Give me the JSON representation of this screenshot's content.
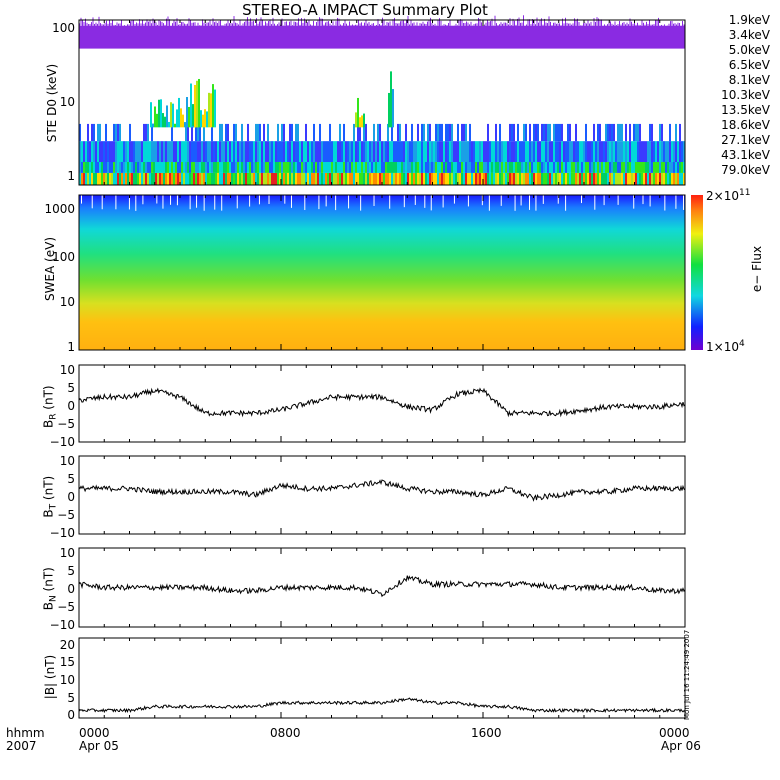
{
  "title": "STEREO-A IMPACT Summary Plot",
  "stamp": "Mon Jul 16 11:24:49 2007",
  "panels": {
    "ste": {
      "ylabel": "STE D0 (keV)",
      "ticks": [
        "100",
        "10",
        "1"
      ]
    },
    "swea": {
      "ylabel": "SWEA (eV)",
      "ticks": [
        "1000",
        "100",
        "10",
        "1"
      ],
      "colorbar_label": "e− Flux",
      "cb_max": "2×10",
      "cb_max_exp": "11",
      "cb_min": "1×10",
      "cb_min_exp": "4"
    },
    "br": {
      "ylabel_main": "B",
      "ylabel_sub": "R",
      "ylabel_unit": " (nT)",
      "ticks": [
        "10",
        "5",
        "0",
        "−5",
        "−10"
      ]
    },
    "bt": {
      "ylabel_main": "B",
      "ylabel_sub": "T",
      "ylabel_unit": " (nT)",
      "ticks": [
        "10",
        "5",
        "0",
        "−5",
        "−10"
      ]
    },
    "bn": {
      "ylabel_main": "B",
      "ylabel_sub": "N",
      "ylabel_unit": " (nT)",
      "ticks": [
        "10",
        "5",
        "0",
        "−5",
        "−10"
      ]
    },
    "bmag": {
      "ylabel": "|B| (nT)",
      "ticks": [
        "20",
        "15",
        "10",
        "5",
        "0"
      ]
    }
  },
  "legend": [
    {
      "label": "1.9keV",
      "color": "#8a2be2"
    },
    {
      "label": "3.4keV",
      "color": "#3a3aff"
    },
    {
      "label": "5.0keV",
      "color": "#1a5cff"
    },
    {
      "label": "6.5keV",
      "color": "#1aa0e6"
    },
    {
      "label": "8.1keV",
      "color": "#00d8d8"
    },
    {
      "label": "10.3keV",
      "color": "#00d060"
    },
    {
      "label": "13.5keV",
      "color": "#33e61a"
    },
    {
      "label": "18.6keV",
      "color": "#b0e61a"
    },
    {
      "label": "27.1keV",
      "color": "#ffd700"
    },
    {
      "label": "43.1keV",
      "color": "#ff8c00"
    },
    {
      "label": "79.0keV",
      "color": "#e62020"
    }
  ],
  "xaxis": {
    "row1": [
      "hhmm",
      "0000",
      "0800",
      "1600",
      "0000"
    ],
    "row2": [
      "2007",
      "Apr 05",
      "Apr 06"
    ]
  },
  "chart_data": [
    {
      "type": "heatmap",
      "ylabel": "STE D0 (keV)",
      "ylog": true,
      "ylim": [
        1,
        100
      ],
      "x": [
        "0000",
        "0800",
        "1600",
        "0000"
      ],
      "series_names": [
        "1.9keV",
        "3.4keV",
        "5.0keV",
        "6.5keV",
        "8.1keV",
        "10.3keV",
        "13.5keV",
        "18.6keV",
        "27.1keV",
        "43.1keV",
        "79.0keV"
      ]
    },
    {
      "type": "heatmap",
      "ylabel": "SWEA (eV)",
      "ylog": true,
      "ylim": [
        1,
        2000
      ],
      "clim": [
        10000,
        200000000000
      ],
      "clabel": "e− Flux"
    },
    {
      "type": "line",
      "ylabel": "BR (nT)",
      "ylim": [
        -12,
        12
      ],
      "x": [
        0,
        1,
        2,
        3,
        4,
        5,
        6,
        7,
        8,
        9,
        10,
        11,
        12,
        13,
        14,
        15,
        16,
        17,
        18,
        19,
        20,
        21,
        22,
        23,
        24
      ],
      "y": [
        1,
        2,
        2,
        4,
        2,
        -3,
        -3,
        -3,
        -2,
        0,
        2,
        2,
        2,
        -1,
        -2,
        3,
        4,
        -3,
        -3,
        -3,
        -2,
        -1,
        -1,
        -1,
        0
      ]
    },
    {
      "type": "line",
      "ylabel": "BT (nT)",
      "ylim": [
        -12,
        12
      ],
      "x": [
        0,
        1,
        2,
        3,
        4,
        5,
        6,
        7,
        8,
        9,
        10,
        11,
        12,
        13,
        14,
        15,
        16,
        17,
        18,
        19,
        20,
        21,
        22,
        23,
        24
      ],
      "y": [
        2,
        2,
        2,
        1,
        1,
        1,
        1,
        0,
        3,
        2,
        2,
        3,
        4,
        2,
        1,
        1,
        0,
        2,
        -1,
        0,
        1,
        1,
        2,
        2,
        2
      ]
    },
    {
      "type": "line",
      "ylabel": "BN (nT)",
      "ylim": [
        -12,
        12
      ],
      "x": [
        0,
        1,
        2,
        3,
        4,
        5,
        6,
        7,
        8,
        9,
        10,
        11,
        12,
        13,
        14,
        15,
        16,
        17,
        18,
        19,
        20,
        21,
        22,
        23,
        24
      ],
      "y": [
        1,
        0,
        0,
        0,
        0,
        0,
        -1,
        -1,
        0,
        0,
        0,
        0,
        -2,
        3,
        1,
        1,
        1,
        1,
        1,
        0,
        0,
        0,
        0,
        -1,
        -1
      ]
    },
    {
      "type": "line",
      "ylabel": "|B| (nT)",
      "ylim": [
        0,
        21
      ],
      "x": [
        0,
        1,
        2,
        3,
        4,
        5,
        6,
        7,
        8,
        9,
        10,
        11,
        12,
        13,
        14,
        15,
        16,
        17,
        18,
        19,
        20,
        21,
        22,
        23,
        24
      ],
      "y": [
        2,
        2,
        2,
        3,
        3,
        3,
        3,
        3,
        4,
        4,
        4,
        4,
        4,
        5,
        4,
        4,
        3,
        3,
        2,
        2,
        2,
        2,
        2,
        2,
        2
      ]
    }
  ]
}
